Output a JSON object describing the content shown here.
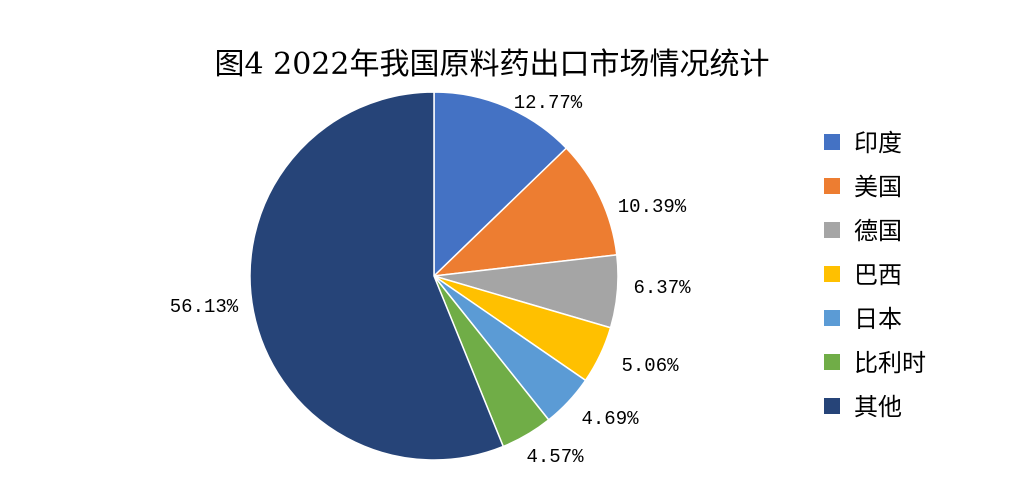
{
  "chart_data": {
    "type": "pie",
    "title": "图4 2022年我国原料药出口市场情况统计",
    "categories": [
      "印度",
      "美国",
      "德国",
      "巴西",
      "日本",
      "比利时",
      "其他"
    ],
    "values": [
      12.77,
      10.39,
      6.37,
      5.06,
      4.69,
      4.57,
      56.13
    ],
    "labels": [
      "12.77%",
      "10.39%",
      "6.37%",
      "5.06%",
      "4.69%",
      "4.57%",
      "56.13%"
    ],
    "colors": [
      "#4472C4",
      "#ED7D31",
      "#A5A5A5",
      "#FFC000",
      "#5B9BD5",
      "#70AD47",
      "#264478"
    ],
    "legend_position": "right",
    "start_angle": "12 o'clock",
    "direction": "clockwise"
  }
}
